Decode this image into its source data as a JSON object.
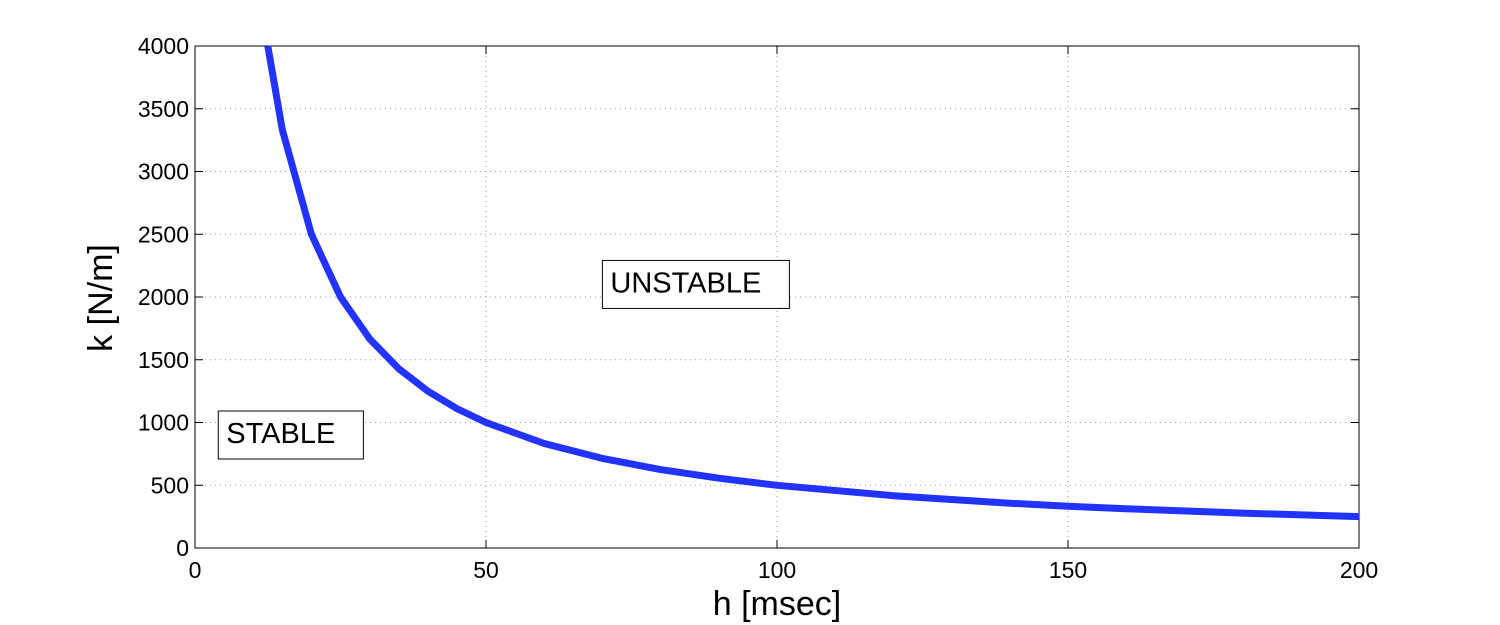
{
  "chart_data": {
    "type": "line",
    "title": "",
    "xlabel": "h [msec]",
    "ylabel": "k  [N/m]",
    "xlim": [
      0,
      200
    ],
    "ylim": [
      0,
      4000
    ],
    "xticks": [
      0,
      50,
      100,
      150,
      200
    ],
    "yticks": [
      0,
      500,
      1000,
      1500,
      2000,
      2500,
      3000,
      3500,
      4000
    ],
    "grid": true,
    "line_color": "#2233ff",
    "series": [
      {
        "x": [
          12.5,
          15,
          20,
          25,
          30,
          35,
          40,
          45,
          50,
          60,
          70,
          80,
          90,
          100,
          120,
          140,
          150,
          160,
          180,
          200
        ],
        "y": [
          4000,
          3333,
          2500,
          2000,
          1667,
          1429,
          1250,
          1111,
          1000,
          833,
          714,
          625,
          556,
          500,
          417,
          357,
          333,
          313,
          278,
          250
        ]
      }
    ],
    "annotations": [
      {
        "text": "UNSTABLE",
        "x": 70,
        "y": 2300
      },
      {
        "text": "STABLE",
        "x": 4,
        "y": 1100
      }
    ]
  }
}
